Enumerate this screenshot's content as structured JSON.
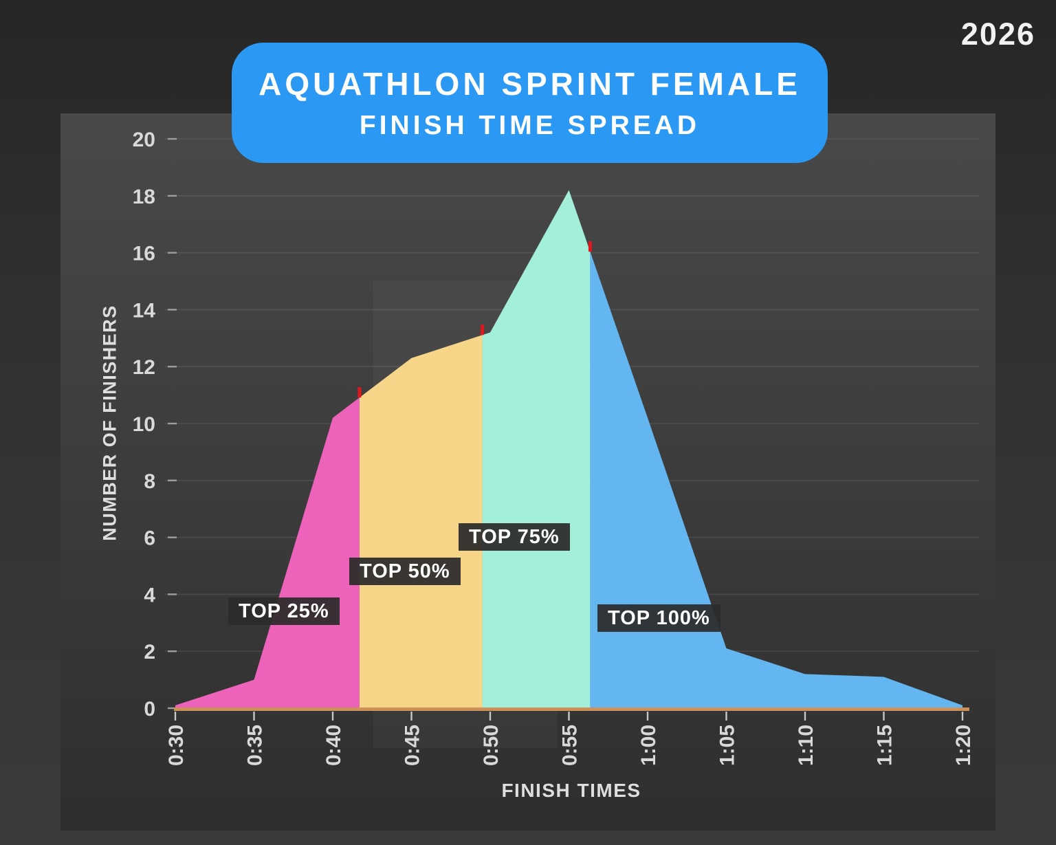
{
  "year": "2026",
  "title": {
    "line1": "AQUATHLON SPRINT FEMALE",
    "line2": "FINISH TIME SPREAD",
    "banner_color": "#2b99f4"
  },
  "annotation_box_color": "rgba(43,43,43,0.93)",
  "chart_data": {
    "type": "area",
    "title": "AQUATHLON SPRINT FEMALE FINISH TIME SPREAD",
    "xlabel": "FINISH TIMES",
    "ylabel": "NUMBER OF FINISHERS",
    "x_tick_labels": [
      "0:30",
      "0:35",
      "0:40",
      "0:45",
      "0:50",
      "0:55",
      "1:00",
      "1:05",
      "1:10",
      "1:15",
      "1:20"
    ],
    "x_minutes": [
      30,
      35,
      40,
      45,
      50,
      55,
      60,
      65,
      70,
      75,
      80
    ],
    "values": [
      0.1,
      1,
      10.2,
      12.3,
      13.2,
      18.2,
      10.2,
      2.1,
      1.2,
      1.1,
      0.1
    ],
    "ylim": [
      0,
      20
    ],
    "y_tick_step": 2,
    "xlim_minutes": [
      30,
      80
    ],
    "grid": "horizontal",
    "legend": "none",
    "segments": [
      {
        "label": "TOP 25%",
        "color": "#ee63ba",
        "end_minute": 41.7
      },
      {
        "label": "TOP 50%",
        "color": "#f6d589",
        "end_minute": 49.5
      },
      {
        "label": "TOP 75%",
        "color": "#a4efd9",
        "end_minute": 56.35
      },
      {
        "label": "TOP 100%",
        "color": "#63b6ef",
        "end_minute": 80
      }
    ],
    "percentile_marker_color": "#e0181d",
    "baseline_color": "#cb9159"
  }
}
